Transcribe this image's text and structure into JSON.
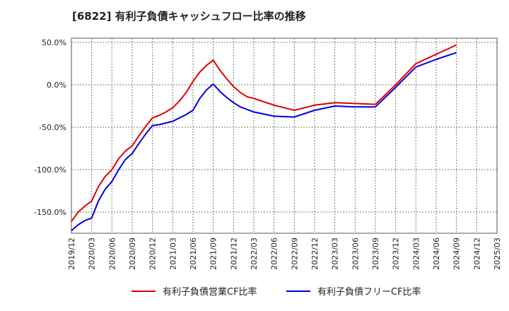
{
  "chart_data": {
    "type": "line",
    "title": "[6822]  有利子負債キャッシュフロー比率の推移",
    "xlabel": "",
    "ylabel": "",
    "x_ticks": [
      "2019/12",
      "2020/03",
      "2020/06",
      "2020/09",
      "2020/12",
      "2021/03",
      "2021/06",
      "2021/09",
      "2021/12",
      "2022/03",
      "2022/06",
      "2022/09",
      "2022/12",
      "2023/03",
      "2023/06",
      "2023/09",
      "2023/12",
      "2024/03",
      "2024/06",
      "2024/09",
      "2024/12",
      "2025/03"
    ],
    "y_ticks": [
      50,
      0,
      -50,
      -100,
      -150
    ],
    "y_tick_labels": [
      "50.0%",
      "0.0%",
      "-50.0%",
      "-100.0%",
      "-150.0%"
    ],
    "ylim": [
      -175,
      55
    ],
    "grid": true,
    "legend_position": "bottom",
    "colors": {
      "series1": "#dd0000",
      "series2": "#0000dd",
      "grid": "#777777",
      "axis": "#555555"
    },
    "series": [
      {
        "name": "有利子負債営業CF比率",
        "x": [
          "2019/12",
          "2020/01",
          "2020/02",
          "2020/03",
          "2020/04",
          "2020/05",
          "2020/06",
          "2020/07",
          "2020/08",
          "2020/09",
          "2020/10",
          "2020/11",
          "2020/12",
          "2021/01",
          "2021/02",
          "2021/03",
          "2021/04",
          "2021/05",
          "2021/06",
          "2021/07",
          "2021/08",
          "2021/09",
          "2021/10",
          "2021/11",
          "2021/12",
          "2022/01",
          "2022/02",
          "2022/03",
          "2022/06",
          "2022/09",
          "2022/12",
          "2023/03",
          "2023/06",
          "2023/09",
          "2023/12",
          "2024/03",
          "2024/06",
          "2024/09"
        ],
        "y": [
          -161,
          -150,
          -143,
          -137,
          -120,
          -108,
          -100,
          -87,
          -78,
          -72,
          -60,
          -49,
          -39,
          -36,
          -32,
          -27,
          -19,
          -9,
          4,
          15,
          23,
          29,
          17,
          7,
          -2,
          -9,
          -14,
          -16,
          -24,
          -30,
          -24,
          -21,
          -22,
          -23,
          0,
          25,
          36,
          47
        ]
      },
      {
        "name": "有利子負債フリーCF比率",
        "x": [
          "2019/12",
          "2020/01",
          "2020/02",
          "2020/03",
          "2020/04",
          "2020/05",
          "2020/06",
          "2020/07",
          "2020/08",
          "2020/09",
          "2020/10",
          "2020/11",
          "2020/12",
          "2021/01",
          "2021/02",
          "2021/03",
          "2021/04",
          "2021/05",
          "2021/06",
          "2021/07",
          "2021/08",
          "2021/09",
          "2021/10",
          "2021/11",
          "2021/12",
          "2022/01",
          "2022/02",
          "2022/03",
          "2022/06",
          "2022/09",
          "2022/12",
          "2023/03",
          "2023/06",
          "2023/09",
          "2023/12",
          "2024/03",
          "2024/06",
          "2024/09"
        ],
        "y": [
          -172,
          -165,
          -160,
          -157,
          -137,
          -123,
          -114,
          -100,
          -88,
          -81,
          -69,
          -58,
          -48,
          -47,
          -45,
          -43,
          -39,
          -35,
          -30,
          -16,
          -6,
          1,
          -8,
          -15,
          -21,
          -26,
          -29,
          -32,
          -37,
          -38,
          -30,
          -25,
          -26,
          -26,
          -3,
          21,
          30,
          38
        ]
      }
    ]
  }
}
